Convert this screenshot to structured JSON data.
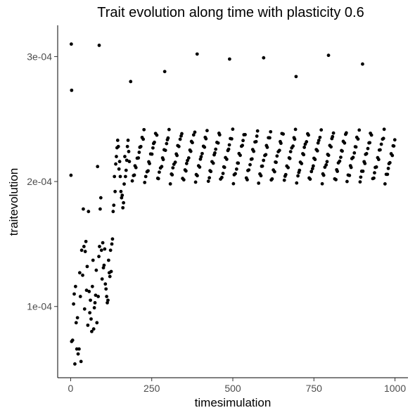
{
  "chart_data": {
    "type": "scatter",
    "title": "Trait evolution along time with plasticity 0.6",
    "xlabel": "timesimulation",
    "ylabel": "traitevolution",
    "xlim": [
      -40,
      1040
    ],
    "ylim": [
      4.3e-05,
      0.000325
    ],
    "xticks": [
      0,
      250,
      500,
      750,
      1000
    ],
    "xtick_labels": [
      "0",
      "250",
      "500",
      "750",
      "1000"
    ],
    "yticks": [
      0.0001,
      0.0002,
      0.0003
    ],
    "ytick_labels": [
      "1e-04",
      "2e-04",
      "3e-04"
    ],
    "grid": false,
    "legend": "none",
    "colors": {
      "points": "#000000",
      "axis": "#000000",
      "ticks": "#4d4d4d"
    },
    "outliers": [
      [
        2,
        0.00031
      ],
      [
        3,
        0.000273
      ],
      [
        1,
        0.000205
      ],
      [
        88,
        0.000309
      ],
      [
        185,
        0.00028
      ],
      [
        290,
        0.000288
      ],
      [
        390,
        0.000302
      ],
      [
        490,
        0.000298
      ],
      [
        595,
        0.000299
      ],
      [
        695,
        0.000284
      ],
      [
        795,
        0.000301
      ],
      [
        900,
        0.000294
      ]
    ],
    "early_points": [
      [
        3,
        7.2e-05
      ],
      [
        6,
        7.3e-05
      ],
      [
        9,
        0.000102
      ],
      [
        11,
        0.00011
      ],
      [
        13,
        5.4e-05
      ],
      [
        15,
        0.000116
      ],
      [
        17,
        8.7e-05
      ],
      [
        19,
        6.6e-05
      ],
      [
        21,
        9.1e-05
      ],
      [
        23,
        6.2e-05
      ],
      [
        26,
        6.6e-05
      ],
      [
        28,
        0.000127
      ],
      [
        30,
        0.000108
      ],
      [
        32,
        5.6e-05
      ],
      [
        34,
        0.000145
      ],
      [
        37,
        0.000125
      ],
      [
        39,
        0.000178
      ],
      [
        41,
        0.000148
      ],
      [
        43,
        9.8e-05
      ],
      [
        45,
        0.000144
      ],
      [
        47,
        0.000152
      ],
      [
        49,
        0.000113
      ],
      [
        51,
        0.000132
      ],
      [
        53,
        8.5e-05
      ],
      [
        55,
        0.000176
      ],
      [
        57,
        0.000112
      ],
      [
        59,
        9.5e-05
      ],
      [
        61,
        0.000105
      ],
      [
        63,
        9e-05
      ],
      [
        65,
        8e-05
      ],
      [
        67,
        0.000116
      ],
      [
        69,
        0.000137
      ],
      [
        71,
        8.2e-05
      ],
      [
        73,
        9.9e-05
      ],
      [
        75,
        0.000103
      ],
      [
        77,
        0.000109
      ],
      [
        79,
        0.000129
      ],
      [
        81,
        8.7e-05
      ],
      [
        83,
        0.000212
      ],
      [
        85,
        0.000108
      ],
      [
        87,
        0.00014
      ],
      [
        89,
        0.000148
      ],
      [
        91,
        0.000178
      ],
      [
        93,
        0.000187
      ],
      [
        95,
        0.000145
      ],
      [
        97,
        0.000122
      ],
      [
        99,
        0.000151
      ],
      [
        101,
        0.000131
      ],
      [
        103,
        0.000133
      ],
      [
        105,
        0.000146
      ],
      [
        107,
        0.000118
      ],
      [
        109,
        0.000114
      ],
      [
        111,
        0.000108
      ],
      [
        113,
        0.000103
      ],
      [
        115,
        0.000105
      ],
      [
        117,
        0.000137
      ],
      [
        119,
        0.000127
      ],
      [
        121,
        0.000124
      ],
      [
        123,
        0.000145
      ],
      [
        125,
        0.000128
      ],
      [
        127,
        0.00015
      ],
      [
        129,
        0.000154
      ],
      [
        131,
        0.000176
      ],
      [
        133,
        0.000181
      ],
      [
        135,
        0.000204
      ],
      [
        137,
        0.000192
      ],
      [
        139,
        0.000214
      ],
      [
        141,
        0.00022
      ],
      [
        143,
        0.000227
      ],
      [
        145,
        0.000233
      ],
      [
        147,
        0.000228
      ],
      [
        149,
        0.00021
      ],
      [
        151,
        0.000216
      ],
      [
        153,
        0.000204
      ],
      [
        155,
        0.000192
      ],
      [
        157,
        0.000187
      ],
      [
        159,
        0.000189
      ],
      [
        161,
        0.000179
      ],
      [
        163,
        0.000183
      ],
      [
        165,
        0.000198
      ],
      [
        167,
        0.00022
      ],
      [
        169,
        0.000204
      ],
      [
        171,
        0.000209
      ],
      [
        173,
        0.000217
      ],
      [
        175,
        0.000228
      ],
      [
        177,
        0.000233
      ],
      [
        179,
        0.000224
      ],
      [
        181,
        0.000216
      ]
    ],
    "plateau": {
      "x_start": 190,
      "x_end": 1000,
      "x_step": 3,
      "y_center": 0.00022,
      "y_amplitude": 1.95e-05,
      "y_spread": 2.4e-06
    }
  }
}
